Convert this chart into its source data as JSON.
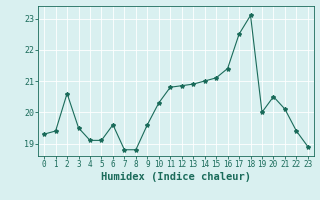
{
  "x": [
    0,
    1,
    2,
    3,
    4,
    5,
    6,
    7,
    8,
    9,
    10,
    11,
    12,
    13,
    14,
    15,
    16,
    17,
    18,
    19,
    20,
    21,
    22,
    23
  ],
  "y": [
    19.3,
    19.4,
    20.6,
    19.5,
    19.1,
    19.1,
    19.6,
    18.8,
    18.8,
    19.6,
    20.3,
    20.8,
    20.85,
    20.9,
    21.0,
    21.1,
    21.4,
    22.5,
    23.1,
    20.0,
    20.5,
    20.1,
    19.4,
    18.9
  ],
  "line_color": "#1a6b5a",
  "marker": "*",
  "marker_size": 3,
  "bg_color": "#d9f0f0",
  "grid_color": "#ffffff",
  "xlabel": "Humidex (Indice chaleur)",
  "xlim": [
    -0.5,
    23.5
  ],
  "ylim": [
    18.6,
    23.4
  ],
  "yticks": [
    19,
    20,
    21,
    22,
    23
  ],
  "xticks": [
    0,
    1,
    2,
    3,
    4,
    5,
    6,
    7,
    8,
    9,
    10,
    11,
    12,
    13,
    14,
    15,
    16,
    17,
    18,
    19,
    20,
    21,
    22,
    23
  ],
  "tick_label_size": 5.5,
  "xlabel_size": 7.5
}
